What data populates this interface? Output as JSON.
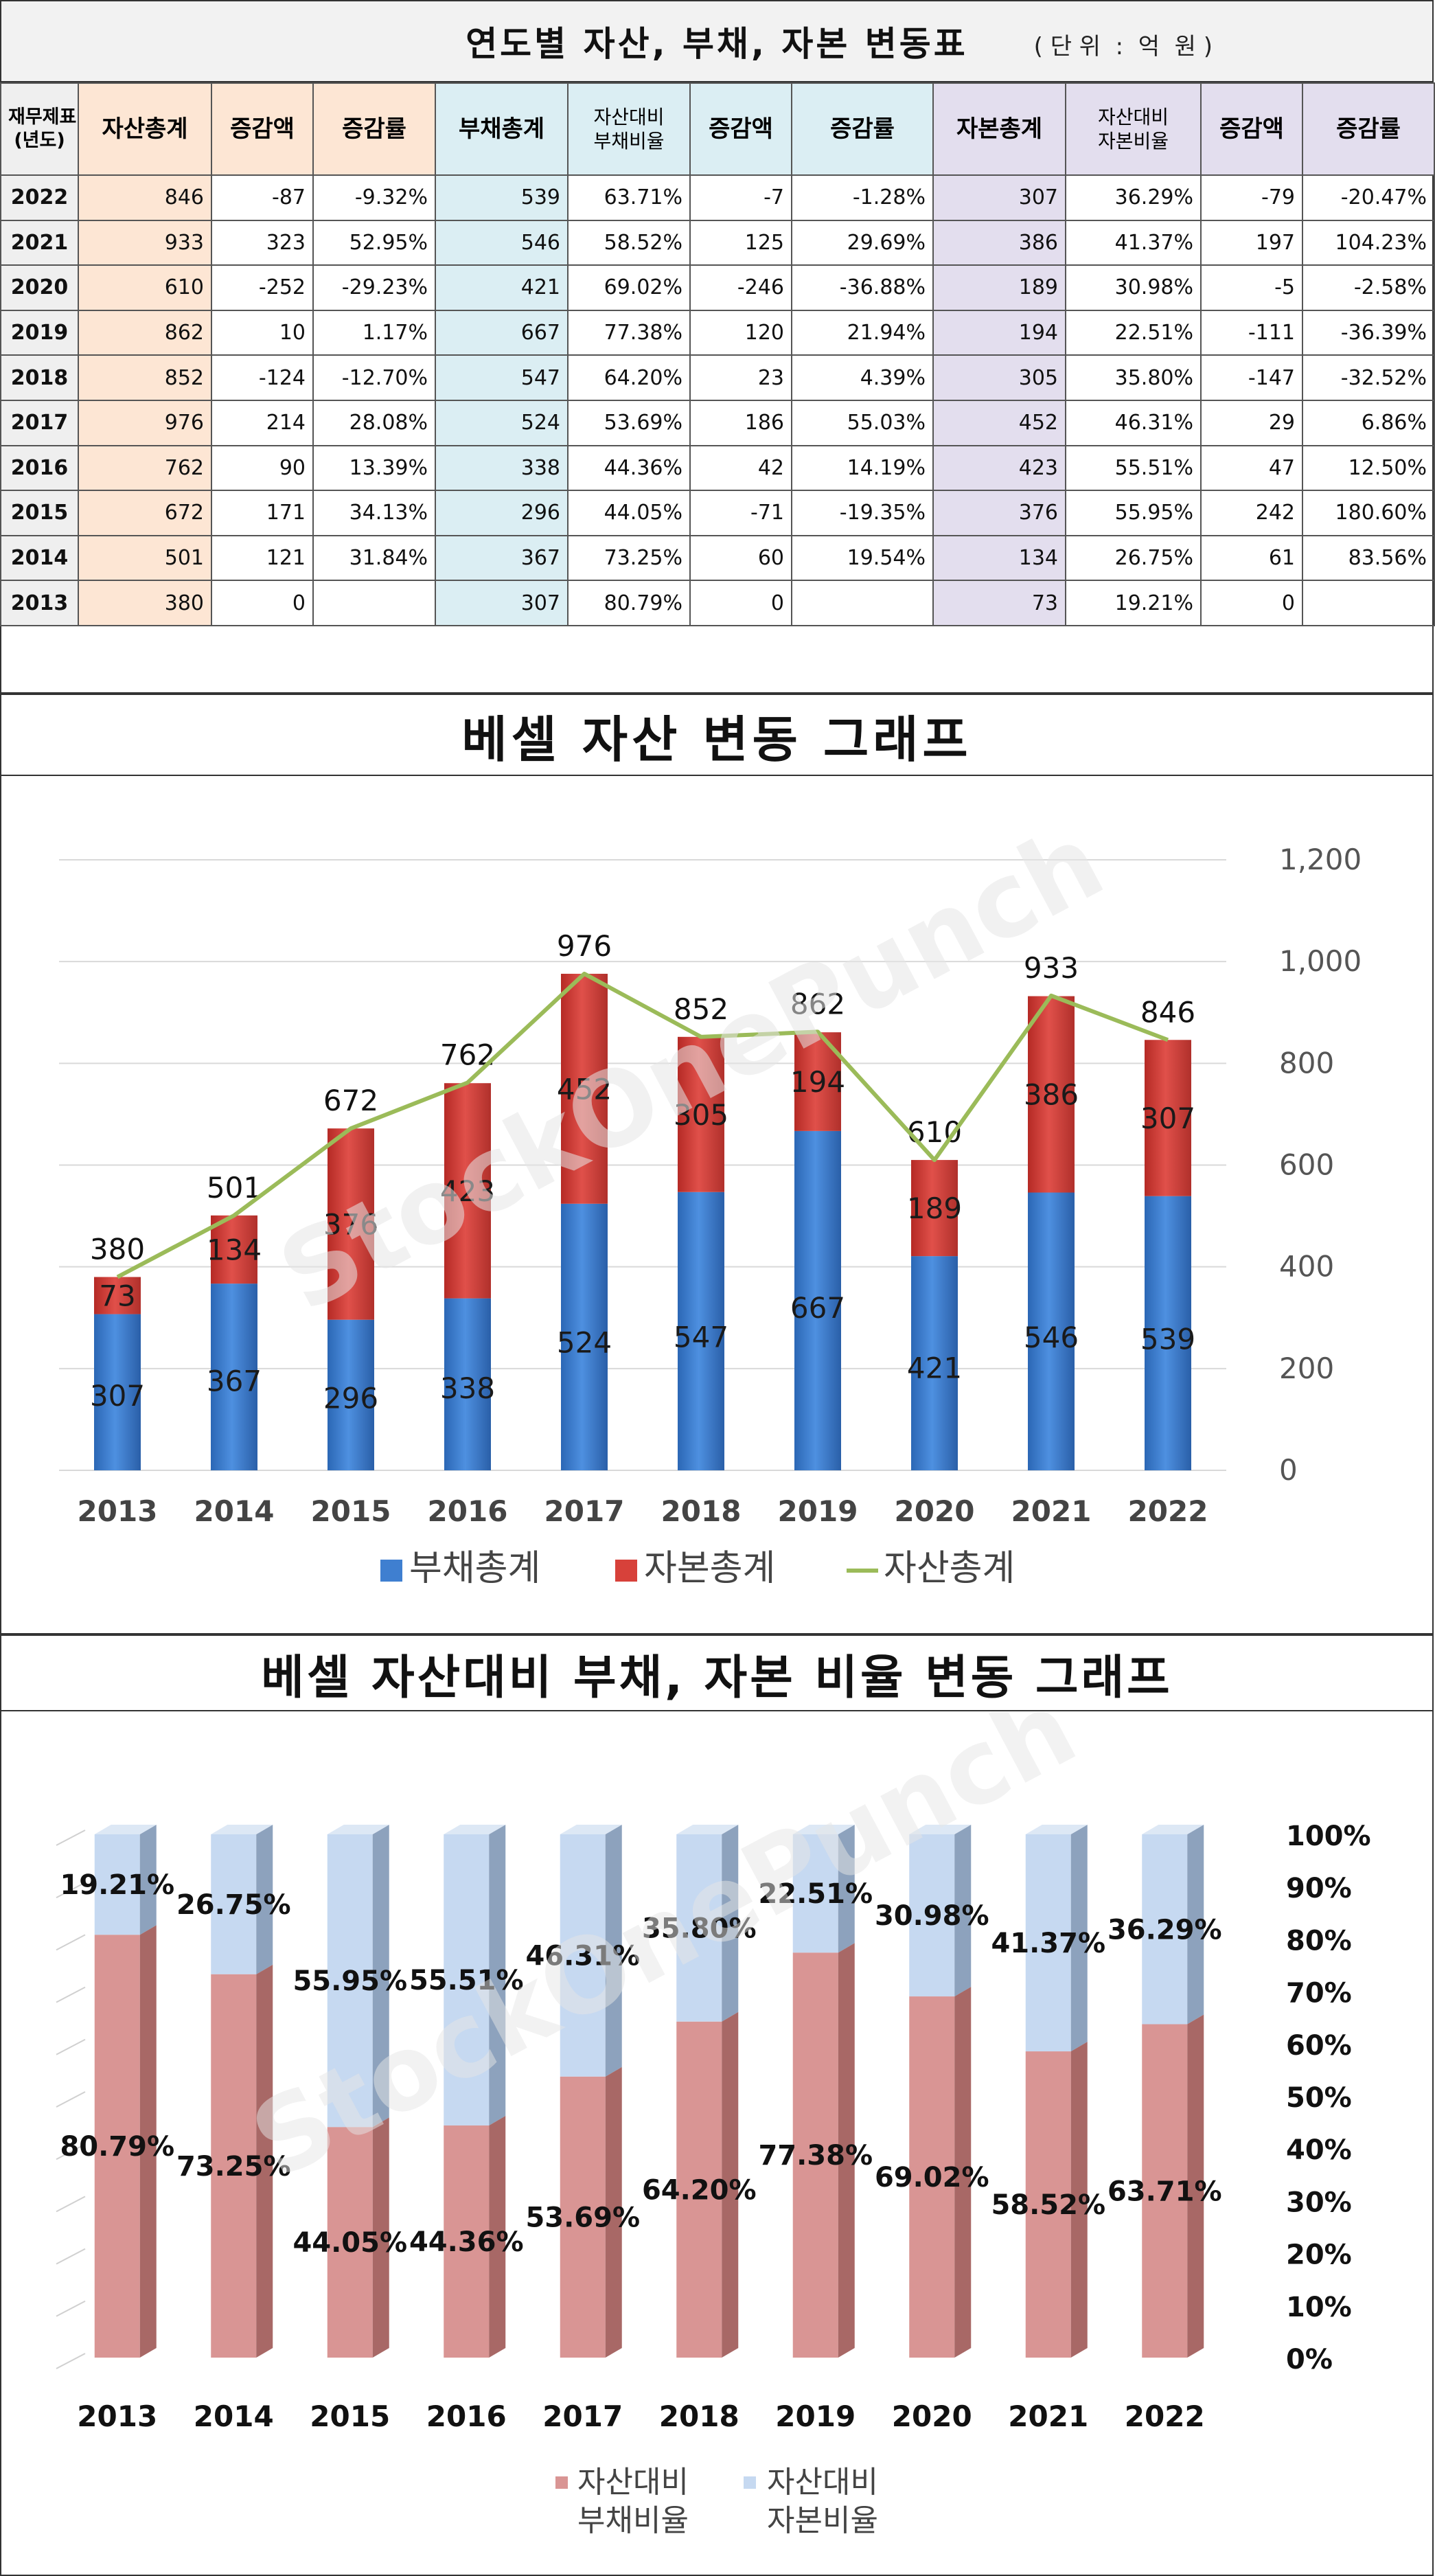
{
  "table": {
    "title": "연도별 자산, 부채, 자본 변동표",
    "unit": "( 단 위  :  억  원 )",
    "headers": {
      "year": "재무제표\n(년도)",
      "asset_total": "자산총계",
      "asset_change": "증감액",
      "asset_rate": "증감률",
      "debt_total": "부채총계",
      "debt_ratio": "자산대비\n부채비율",
      "debt_change": "증감액",
      "debt_rate": "증감률",
      "cap_total": "자본총계",
      "cap_ratio": "자산대비\n자본비율",
      "cap_change": "증감액",
      "cap_rate": "증감률"
    },
    "rows": [
      {
        "year": "2022",
        "asset_total": "846",
        "asset_change": "-87",
        "asset_rate": "-9.32%",
        "debt_total": "539",
        "debt_ratio": "63.71%",
        "debt_change": "-7",
        "debt_rate": "-1.28%",
        "cap_total": "307",
        "cap_ratio": "36.29%",
        "cap_change": "-79",
        "cap_rate": "-20.47%"
      },
      {
        "year": "2021",
        "asset_total": "933",
        "asset_change": "323",
        "asset_rate": "52.95%",
        "debt_total": "546",
        "debt_ratio": "58.52%",
        "debt_change": "125",
        "debt_rate": "29.69%",
        "cap_total": "386",
        "cap_ratio": "41.37%",
        "cap_change": "197",
        "cap_rate": "104.23%"
      },
      {
        "year": "2020",
        "asset_total": "610",
        "asset_change": "-252",
        "asset_rate": "-29.23%",
        "debt_total": "421",
        "debt_ratio": "69.02%",
        "debt_change": "-246",
        "debt_rate": "-36.88%",
        "cap_total": "189",
        "cap_ratio": "30.98%",
        "cap_change": "-5",
        "cap_rate": "-2.58%"
      },
      {
        "year": "2019",
        "asset_total": "862",
        "asset_change": "10",
        "asset_rate": "1.17%",
        "debt_total": "667",
        "debt_ratio": "77.38%",
        "debt_change": "120",
        "debt_rate": "21.94%",
        "cap_total": "194",
        "cap_ratio": "22.51%",
        "cap_change": "-111",
        "cap_rate": "-36.39%"
      },
      {
        "year": "2018",
        "asset_total": "852",
        "asset_change": "-124",
        "asset_rate": "-12.70%",
        "debt_total": "547",
        "debt_ratio": "64.20%",
        "debt_change": "23",
        "debt_rate": "4.39%",
        "cap_total": "305",
        "cap_ratio": "35.80%",
        "cap_change": "-147",
        "cap_rate": "-32.52%"
      },
      {
        "year": "2017",
        "asset_total": "976",
        "asset_change": "214",
        "asset_rate": "28.08%",
        "debt_total": "524",
        "debt_ratio": "53.69%",
        "debt_change": "186",
        "debt_rate": "55.03%",
        "cap_total": "452",
        "cap_ratio": "46.31%",
        "cap_change": "29",
        "cap_rate": "6.86%"
      },
      {
        "year": "2016",
        "asset_total": "762",
        "asset_change": "90",
        "asset_rate": "13.39%",
        "debt_total": "338",
        "debt_ratio": "44.36%",
        "debt_change": "42",
        "debt_rate": "14.19%",
        "cap_total": "423",
        "cap_ratio": "55.51%",
        "cap_change": "47",
        "cap_rate": "12.50%"
      },
      {
        "year": "2015",
        "asset_total": "672",
        "asset_change": "171",
        "asset_rate": "34.13%",
        "debt_total": "296",
        "debt_ratio": "44.05%",
        "debt_change": "-71",
        "debt_rate": "-19.35%",
        "cap_total": "376",
        "cap_ratio": "55.95%",
        "cap_change": "242",
        "cap_rate": "180.60%"
      },
      {
        "year": "2014",
        "asset_total": "501",
        "asset_change": "121",
        "asset_rate": "31.84%",
        "debt_total": "367",
        "debt_ratio": "73.25%",
        "debt_change": "60",
        "debt_rate": "19.54%",
        "cap_total": "134",
        "cap_ratio": "26.75%",
        "cap_change": "61",
        "cap_rate": "83.56%"
      },
      {
        "year": "2013",
        "asset_total": "380",
        "asset_change": "0",
        "asset_rate": "",
        "debt_total": "307",
        "debt_ratio": "80.79%",
        "debt_change": "0",
        "debt_rate": "",
        "cap_total": "73",
        "cap_ratio": "19.21%",
        "cap_change": "0",
        "cap_rate": ""
      }
    ]
  },
  "watermark": "StockOnePunch",
  "colors": {
    "debt_blue": "#3f7fd0",
    "cap_red": "#d7413a",
    "asset_line": "#9bbb59",
    "ratio_red": "#d99594",
    "ratio_blue": "#c6d9f1",
    "negative": "#c00000"
  },
  "chart_data": [
    {
      "type": "bar",
      "stacked": true,
      "title": "베셀 자산 변동 그래프",
      "categories": [
        "2013",
        "2014",
        "2015",
        "2016",
        "2017",
        "2018",
        "2019",
        "2020",
        "2021",
        "2022"
      ],
      "series": [
        {
          "name": "부채총계",
          "kind": "bar",
          "values": [
            307,
            367,
            296,
            338,
            524,
            547,
            667,
            421,
            546,
            539
          ]
        },
        {
          "name": "자본총계",
          "kind": "bar",
          "values": [
            73,
            134,
            376,
            423,
            452,
            305,
            194,
            189,
            386,
            307
          ]
        },
        {
          "name": "자산총계",
          "kind": "line",
          "values": [
            380,
            501,
            672,
            762,
            976,
            852,
            862,
            610,
            933,
            846
          ]
        }
      ],
      "ylim": [
        0,
        1200
      ],
      "yticks": [
        "0",
        "200",
        "400",
        "600",
        "800",
        "1,000",
        "1,200"
      ],
      "legend": "bottom",
      "grid": true
    },
    {
      "type": "bar",
      "stacked": true,
      "percent": true,
      "title": "베셀 자산대비 부채, 자본 비율 변동 그래프",
      "categories": [
        "2013",
        "2014",
        "2015",
        "2016",
        "2017",
        "2018",
        "2019",
        "2020",
        "2021",
        "2022"
      ],
      "series": [
        {
          "name": "자산대비\n부채비율",
          "values": [
            80.79,
            73.25,
            44.05,
            44.36,
            53.69,
            64.2,
            77.38,
            69.02,
            58.52,
            63.71
          ],
          "labels": [
            "80.79%",
            "73.25%",
            "44.05%",
            "44.36%",
            "53.69%",
            "64.20%",
            "77.38%",
            "69.02%",
            "58.52%",
            "63.71%"
          ]
        },
        {
          "name": "자산대비\n자본비율",
          "values": [
            19.21,
            26.75,
            55.95,
            55.51,
            46.31,
            35.8,
            22.51,
            30.98,
            41.37,
            36.29
          ],
          "labels": [
            "19.21%",
            "26.75%",
            "55.95%",
            "55.51%",
            "46.31%",
            "35.80%",
            "22.51%",
            "30.98%",
            "41.37%",
            "36.29%"
          ]
        }
      ],
      "ylim": [
        0,
        100
      ],
      "yticks": [
        "0%",
        "10%",
        "20%",
        "30%",
        "40%",
        "50%",
        "60%",
        "70%",
        "80%",
        "90%",
        "100%"
      ],
      "legend": "bottom"
    }
  ]
}
